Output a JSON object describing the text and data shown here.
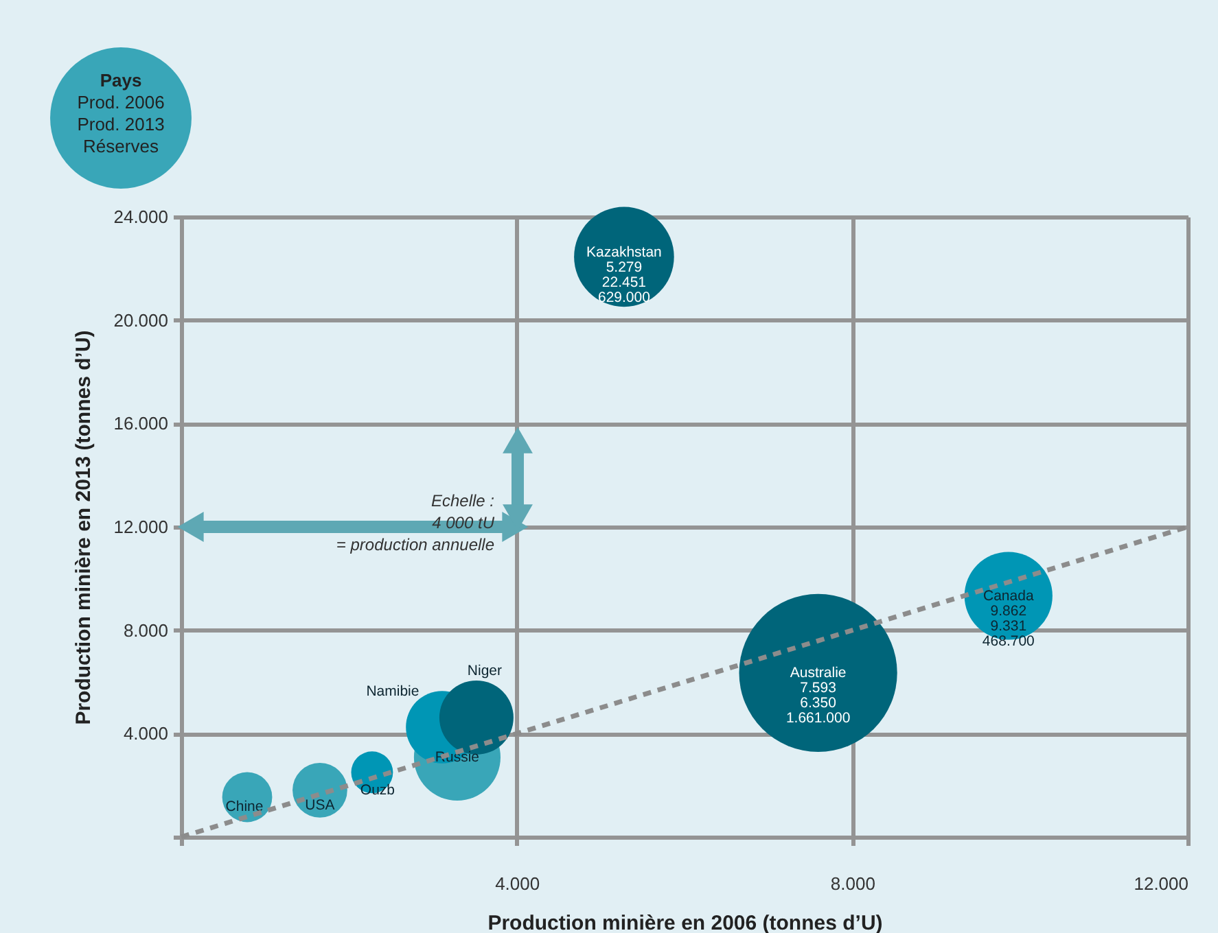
{
  "chart_data": {
    "type": "bubble",
    "xlabel": "Production minière en 2006 (tonnes d’U)",
    "ylabel": "Production minière en 2013 (tonnes d’U)",
    "legend_title": "Pays",
    "xlim": [
      0,
      12000
    ],
    "ylim": [
      0,
      24000
    ],
    "xticks": [
      {
        "value": 0,
        "label": null
      },
      {
        "value": 4000,
        "label": "4.000"
      },
      {
        "value": 8000,
        "label": "8.000"
      },
      {
        "value": 12000,
        "label": "12.000"
      }
    ],
    "yticks": [
      {
        "value": 0,
        "label": null
      },
      {
        "value": 4000,
        "label": "4.000"
      },
      {
        "value": 8000,
        "label": "8.000"
      },
      {
        "value": 12000,
        "label": "12.000"
      },
      {
        "value": 16000,
        "label": "16.000"
      },
      {
        "value": 20000,
        "label": "20.000"
      },
      {
        "value": 24000,
        "label": "24.000"
      }
    ],
    "grid": true,
    "series": [
      {
        "x": [
          5279,
          7593,
          9862,
          3519,
          3110,
          3290,
          2275,
          1653,
          786
        ],
        "values": [
          22451,
          6350,
          9331,
          4620,
          4250,
          3080,
          2500,
          1810,
          1540
        ],
        "sizes": [
          0.4,
          1,
          0.31,
          0.22,
          0.21,
          0.3,
          0.07,
          0.12,
          0.1
        ],
        "colors": [
          "#00657a",
          "#00657a",
          "#0096b5",
          "#00657a",
          "#0096b5",
          "#39a6b8",
          "#0096b5",
          "#39a6b8",
          "#39a6b8"
        ],
        "value_labels": [
          "Kazakhstan\n5.279\n22.451\n629.000",
          "Australie\n7.593\n6.350\n1.661.000",
          "Canada\n9.862\n9.331\n468.700",
          "Niger",
          "Namibie",
          "Russie",
          "Ouzb",
          "USA",
          "Chine"
        ]
      },
      {
        "type": "line",
        "x": [
          0,
          12000
        ],
        "values": [
          0,
          12000
        ],
        "color": "#8c8c8c",
        "line_style": "dashed"
      }
    ],
    "annotations": [
      "Echelle :\n4 000 tU\n= production annuelle",
      "Prod. 2006\nProd. 2013\nRéserves"
    ]
  }
}
